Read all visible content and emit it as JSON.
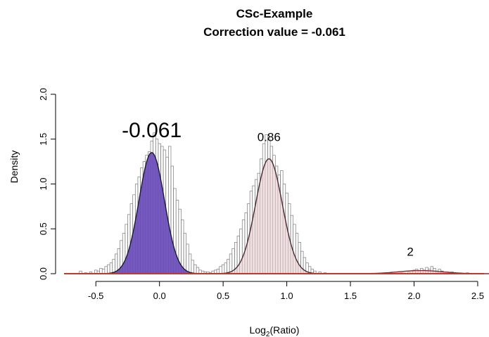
{
  "chart_data": {
    "type": "histogram",
    "title": "CSc-Example",
    "subtitle": "Correction value = -0.061",
    "xlabel_main": "Log",
    "xlabel_sub": "2",
    "xlabel_rest": "(Ratio)",
    "ylabel": "Density",
    "xlim": [
      -0.75,
      2.55
    ],
    "ylim": [
      0,
      2.0
    ],
    "x_ticks": [
      -0.5,
      0.0,
      0.5,
      1.0,
      1.5,
      2.0,
      2.5
    ],
    "x_tick_labels": [
      "-0.5",
      "0.0",
      "0.5",
      "1.0",
      "1.5",
      "2.0",
      "2.5"
    ],
    "y_ticks": [
      0,
      0.5,
      1.0,
      1.5,
      2.0
    ],
    "y_tick_labels": [
      "0.0",
      "0.5",
      "1.0",
      "1.5",
      "2.0"
    ],
    "peaks": [
      {
        "label": "-0.061",
        "mean": -0.061,
        "sd": 0.1,
        "amplitude": 1.35,
        "fill": "#6a4bb8",
        "stroke": "#1a1a3a"
      },
      {
        "label": "0.86",
        "mean": 0.86,
        "sd": 0.105,
        "amplitude": 1.28,
        "fill": "#e8cdd0",
        "stroke": "#4a2a30"
      },
      {
        "label": "2",
        "mean": 2.05,
        "sd": 0.17,
        "amplitude": 0.035,
        "fill": "#e8cdd0",
        "stroke": "#8a2a30"
      }
    ],
    "histogram_bin_width": 0.02,
    "histogram_values": [
      [
        -0.62,
        0.03
      ],
      [
        -0.58,
        0.01
      ],
      [
        -0.54,
        0.02
      ],
      [
        -0.5,
        0.04
      ],
      [
        -0.48,
        0.03
      ],
      [
        -0.46,
        0.06
      ],
      [
        -0.44,
        0.05
      ],
      [
        -0.42,
        0.08
      ],
      [
        -0.4,
        0.1
      ],
      [
        -0.38,
        0.12
      ],
      [
        -0.36,
        0.16
      ],
      [
        -0.34,
        0.22
      ],
      [
        -0.32,
        0.28
      ],
      [
        -0.3,
        0.37
      ],
      [
        -0.28,
        0.45
      ],
      [
        -0.26,
        0.55
      ],
      [
        -0.24,
        0.66
      ],
      [
        -0.22,
        0.78
      ],
      [
        -0.2,
        0.88
      ],
      [
        -0.18,
        1.0
      ],
      [
        -0.16,
        1.08
      ],
      [
        -0.14,
        1.18
      ],
      [
        -0.12,
        1.25
      ],
      [
        -0.1,
        1.32
      ],
      [
        -0.08,
        1.36
      ],
      [
        -0.06,
        1.48
      ],
      [
        -0.04,
        1.57
      ],
      [
        -0.02,
        1.5
      ],
      [
        0.0,
        1.45
      ],
      [
        0.02,
        1.42
      ],
      [
        0.04,
        1.38
      ],
      [
        0.06,
        1.3
      ],
      [
        0.08,
        1.42
      ],
      [
        0.1,
        1.2
      ],
      [
        0.12,
        0.95
      ],
      [
        0.14,
        0.82
      ],
      [
        0.16,
        0.72
      ],
      [
        0.18,
        0.6
      ],
      [
        0.2,
        0.45
      ],
      [
        0.22,
        0.33
      ],
      [
        0.24,
        0.22
      ],
      [
        0.26,
        0.15
      ],
      [
        0.28,
        0.1
      ],
      [
        0.3,
        0.07
      ],
      [
        0.32,
        0.04
      ],
      [
        0.34,
        0.03
      ],
      [
        0.36,
        0.02
      ],
      [
        0.38,
        0.02
      ],
      [
        0.4,
        0.01
      ],
      [
        0.42,
        0.03
      ],
      [
        0.44,
        0.04
      ],
      [
        0.46,
        0.05
      ],
      [
        0.48,
        0.08
      ],
      [
        0.5,
        0.1
      ],
      [
        0.52,
        0.12
      ],
      [
        0.54,
        0.16
      ],
      [
        0.56,
        0.22
      ],
      [
        0.58,
        0.28
      ],
      [
        0.6,
        0.35
      ],
      [
        0.62,
        0.42
      ],
      [
        0.64,
        0.5
      ],
      [
        0.66,
        0.6
      ],
      [
        0.68,
        0.68
      ],
      [
        0.7,
        0.78
      ],
      [
        0.72,
        0.92
      ],
      [
        0.74,
        0.98
      ],
      [
        0.76,
        1.05
      ],
      [
        0.78,
        1.12
      ],
      [
        0.8,
        1.28
      ],
      [
        0.82,
        1.45
      ],
      [
        0.84,
        1.55
      ],
      [
        0.86,
        1.5
      ],
      [
        0.88,
        1.42
      ],
      [
        0.9,
        1.32
      ],
      [
        0.92,
        1.2
      ],
      [
        0.94,
        1.1
      ],
      [
        0.96,
        1.15
      ],
      [
        0.98,
        1.0
      ],
      [
        1.0,
        0.9
      ],
      [
        1.02,
        0.78
      ],
      [
        1.04,
        0.65
      ],
      [
        1.06,
        0.55
      ],
      [
        1.08,
        0.45
      ],
      [
        1.1,
        0.35
      ],
      [
        1.12,
        0.25
      ],
      [
        1.14,
        0.18
      ],
      [
        1.16,
        0.12
      ],
      [
        1.18,
        0.08
      ],
      [
        1.2,
        0.05
      ],
      [
        1.22,
        0.03
      ],
      [
        1.26,
        0.02
      ],
      [
        1.3,
        0.01
      ],
      [
        1.9,
        0.01
      ],
      [
        1.96,
        0.02
      ],
      [
        2.0,
        0.04
      ],
      [
        2.02,
        0.05
      ],
      [
        2.04,
        0.03
      ],
      [
        2.06,
        0.06
      ],
      [
        2.08,
        0.04
      ],
      [
        2.1,
        0.07
      ],
      [
        2.12,
        0.05
      ],
      [
        2.14,
        0.08
      ],
      [
        2.16,
        0.06
      ],
      [
        2.18,
        0.03
      ],
      [
        2.2,
        0.05
      ],
      [
        2.22,
        0.03
      ],
      [
        2.26,
        0.02
      ],
      [
        2.3,
        0.02
      ],
      [
        2.36,
        0.01
      ],
      [
        2.42,
        0.01
      ]
    ],
    "baseline_color": "#c0392b",
    "grid": false
  }
}
